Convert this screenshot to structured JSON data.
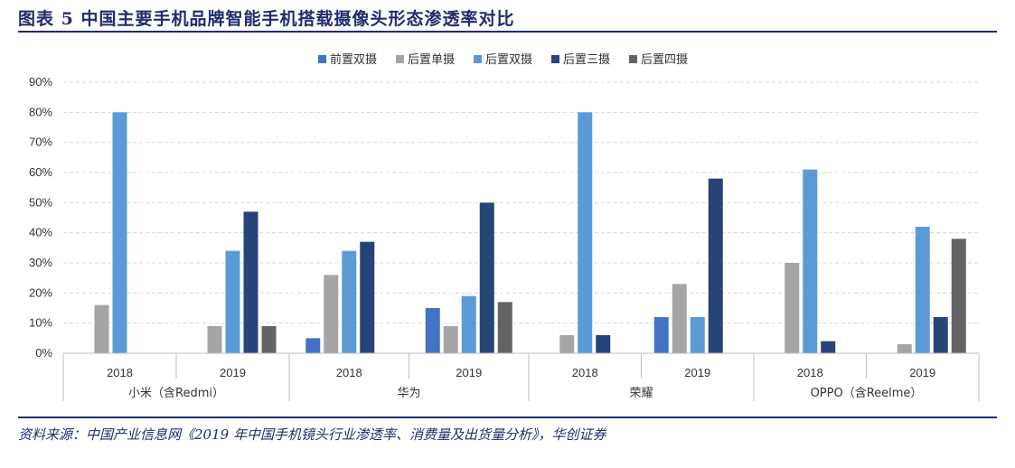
{
  "figure_title": "图表 5   中国主要手机品牌智能手机搭载摄像头形态渗透率对比",
  "source": "资料来源：中国产业信息网《2019 年中国手机镜头行业渗透率、消费量及出货量分析》，华创证券",
  "chart_data": {
    "type": "bar",
    "title": "",
    "xlabel": "",
    "ylabel": "",
    "ylim": [
      0,
      90
    ],
    "yticks": [
      "0%",
      "10%",
      "20%",
      "30%",
      "40%",
      "50%",
      "60%",
      "70%",
      "80%",
      "90%"
    ],
    "grid": true,
    "legend_position": "top",
    "groups": [
      "小米（含Redmi）",
      "华为",
      "荣耀",
      "OPPO（含Reelme）"
    ],
    "categories": [
      "2018",
      "2019",
      "2018",
      "2019",
      "2018",
      "2019",
      "2018",
      "2019"
    ],
    "series": [
      {
        "name": "前置双摄",
        "color": "#4472c4",
        "values": [
          0,
          0,
          5,
          15,
          0,
          12,
          0,
          0
        ]
      },
      {
        "name": "后置单摄",
        "color": "#a5a5a5",
        "values": [
          16,
          9,
          26,
          9,
          6,
          23,
          30,
          3
        ]
      },
      {
        "name": "后置双摄",
        "color": "#5b9bd5",
        "values": [
          80,
          34,
          34,
          19,
          80,
          12,
          61,
          42
        ]
      },
      {
        "name": "后置三摄",
        "color": "#264478",
        "values": [
          0,
          47,
          37,
          50,
          6,
          58,
          4,
          12
        ]
      },
      {
        "name": "后置四摄",
        "color": "#636363",
        "values": [
          0,
          9,
          0,
          17,
          0,
          0,
          0,
          38
        ]
      }
    ]
  }
}
